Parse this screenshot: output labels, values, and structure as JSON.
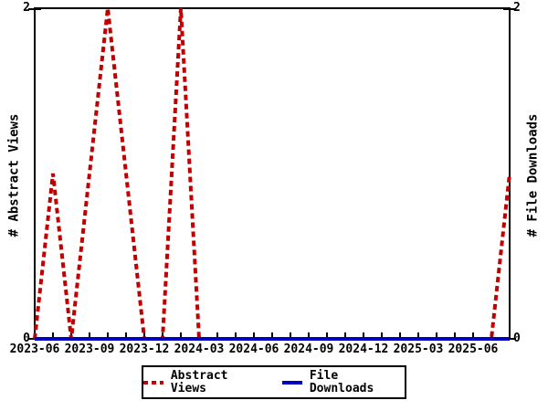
{
  "chart_data": {
    "type": "line",
    "x": [
      "2023-06",
      "2023-07",
      "2023-08",
      "2023-09",
      "2023-10",
      "2023-11",
      "2023-12",
      "2024-01",
      "2024-02",
      "2024-03",
      "2024-04",
      "2024-05",
      "2024-06",
      "2024-07",
      "2024-08",
      "2024-09",
      "2024-10",
      "2024-11",
      "2024-12",
      "2025-01",
      "2025-02",
      "2025-03",
      "2025-04",
      "2025-05",
      "2025-06",
      "2025-07",
      "2025-08"
    ],
    "series": [
      {
        "name": "Abstract Views",
        "color": "#c00000",
        "style": "dashed",
        "axis": "left",
        "values": [
          0,
          1,
          0,
          1,
          2,
          1,
          0,
          0,
          2,
          0,
          0,
          0,
          0,
          0,
          0,
          0,
          0,
          0,
          0,
          0,
          0,
          0,
          0,
          0,
          0,
          0,
          1
        ]
      },
      {
        "name": "File Downloads",
        "color": "#0000c0",
        "style": "solid",
        "axis": "right",
        "values": [
          0,
          0,
          0,
          0,
          0,
          0,
          0,
          0,
          0,
          0,
          0,
          0,
          0,
          0,
          0,
          0,
          0,
          0,
          0,
          0,
          0,
          0,
          0,
          0,
          0,
          0,
          0
        ]
      }
    ],
    "title": "",
    "xlabel": "",
    "ylabel_left": "# Abstract Views",
    "ylabel_right": "# File Downloads",
    "ylim": [
      0,
      2
    ],
    "yticks": [
      0,
      2
    ],
    "xtick_labels": [
      "2023-06",
      "2023-09",
      "2023-12",
      "2024-03",
      "2024-06",
      "2024-09",
      "2024-12",
      "2025-03",
      "2025-06"
    ],
    "grid": false,
    "legend_position": "bottom-center",
    "frame_color": "#000000",
    "background_color": "#ffffff"
  }
}
